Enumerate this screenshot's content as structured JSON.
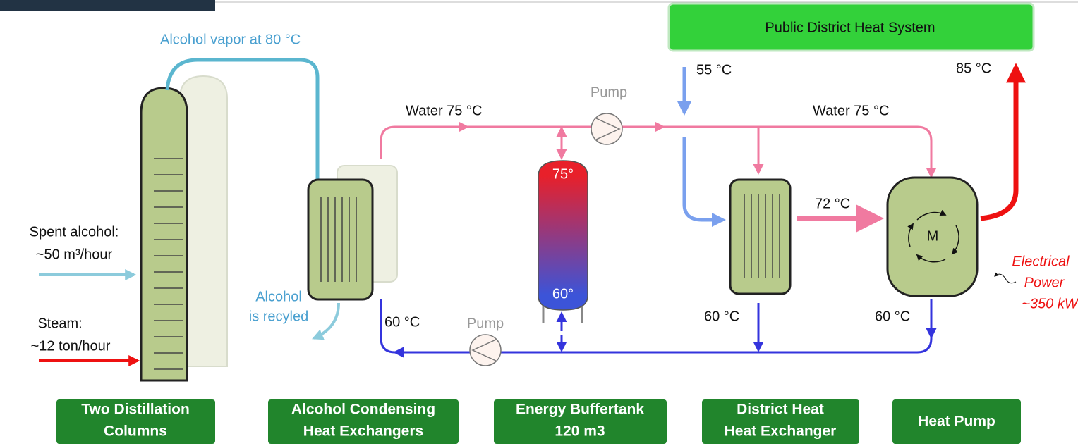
{
  "header": {
    "title": "Public District Heat System"
  },
  "labels": {
    "vapor": "Alcohol vapor at 80 °C",
    "pump_top": "Pump",
    "pump_bottom": "Pump",
    "water_left": "Water 75 °C",
    "water_right": "Water 75 °C",
    "inlet": "55 °C",
    "outlet": "85 °C",
    "mid": "72 °C",
    "tank_top": "75°",
    "tank_bottom": "60°",
    "spent_1": "Spent alcohol:",
    "spent_2": "~50 m³/hour",
    "steam_1": "Steam:",
    "steam_2": "~12 ton/hour",
    "recycled_1": "Alcohol",
    "recycled_2": "is recyled",
    "return_1": "60 °C",
    "return_2": "60 °C",
    "return_3": "60 °C",
    "motor": "M",
    "power_1": "Electrical",
    "power_2": "Power",
    "power_3": "~350 kW"
  },
  "captions": [
    [
      "Two Distillation",
      "Columns"
    ],
    [
      "Alcohol Condensing",
      "Heat Exchangers"
    ],
    [
      "Energy Buffertank",
      "120 m3"
    ],
    [
      "District Heat",
      "Heat Exchanger"
    ],
    [
      "Heat Pump"
    ]
  ]
}
